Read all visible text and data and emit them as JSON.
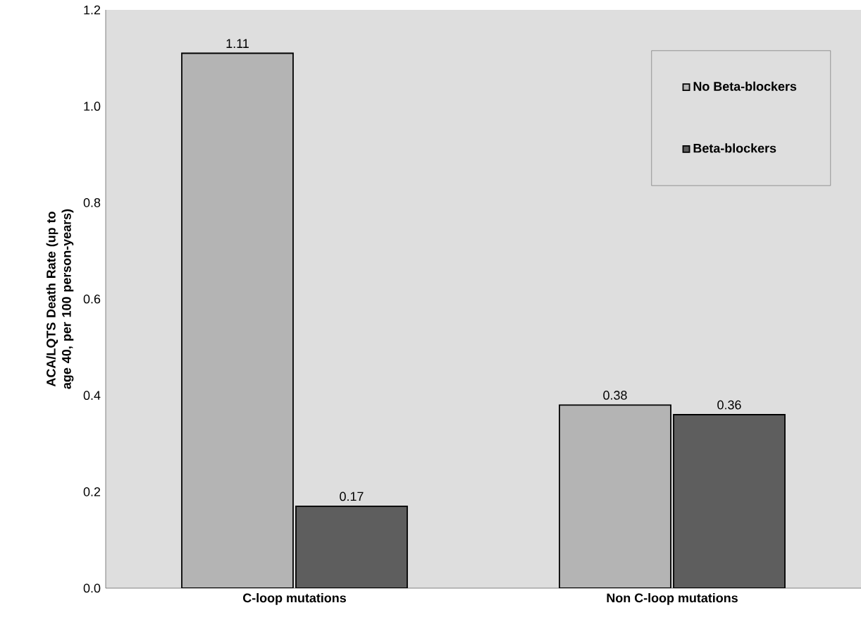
{
  "chart_data": {
    "type": "bar",
    "ylabel": "ACA/LQTS Death Rate (up to age 40, per 100 person-years)",
    "categories": [
      "C-loop mutations",
      "Non C-loop mutations"
    ],
    "series": [
      {
        "name": "No Beta-blockers",
        "color": "#b4b4b4",
        "values": [
          1.11,
          0.38
        ]
      },
      {
        "name": "Beta-blockers",
        "color": "#5e5e5e",
        "values": [
          0.17,
          0.36
        ]
      }
    ],
    "ylim": [
      0,
      1.2
    ],
    "yticks": [
      {
        "value": 0,
        "label": "0.0"
      },
      {
        "value": 0.2,
        "label": "0.2"
      },
      {
        "value": 0.4,
        "label": "0.4"
      },
      {
        "value": 0.6,
        "label": "0.6"
      },
      {
        "value": 0.8,
        "label": "0.8"
      },
      {
        "value": 1.0,
        "label": "1.0"
      },
      {
        "value": 1.2,
        "label": "1.2"
      }
    ],
    "data_labels": true,
    "legend": "top right",
    "grid": false
  }
}
